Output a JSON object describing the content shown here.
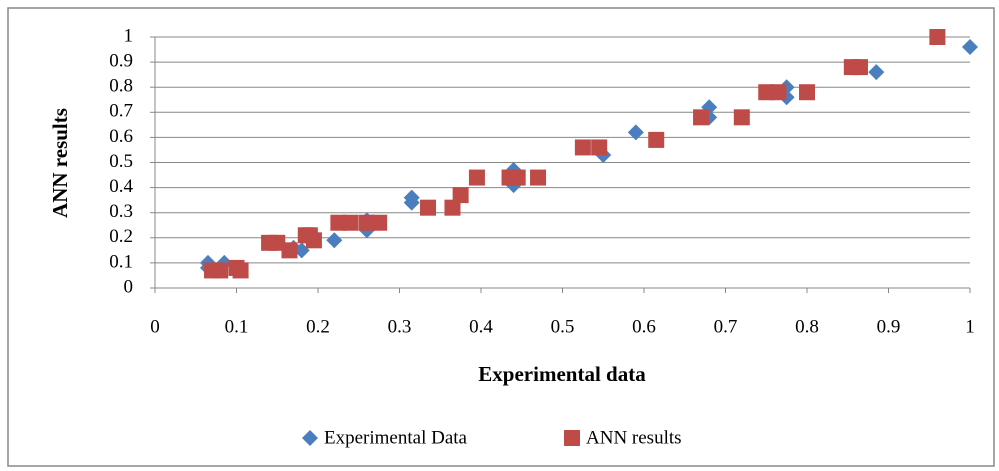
{
  "chart_data": {
    "type": "scatter",
    "x_label": "Experimental data",
    "y_label": "ANN results",
    "xlim": [
      0,
      1
    ],
    "ylim": [
      0,
      1
    ],
    "xticks": [
      0,
      0.1,
      0.2,
      0.3,
      0.4,
      0.5,
      0.6,
      0.7,
      0.8,
      0.9,
      1
    ],
    "yticks": [
      0,
      0.1,
      0.2,
      0.3,
      0.4,
      0.5,
      0.6,
      0.7,
      0.8,
      0.9,
      1
    ],
    "grid": true,
    "legend": "bottom",
    "series": [
      {
        "name": "Experimental Data",
        "color": "#4a7ebf",
        "marker": "diamond",
        "x": [
          0.065,
          0.065,
          0.085,
          0.1,
          0.14,
          0.17,
          0.18,
          0.22,
          0.26,
          0.26,
          0.315,
          0.315,
          0.44,
          0.44,
          0.55,
          0.59,
          0.68,
          0.68,
          0.775,
          0.775,
          0.885,
          1.0
        ],
        "values": [
          0.1,
          0.08,
          0.1,
          0.08,
          0.18,
          0.16,
          0.15,
          0.19,
          0.27,
          0.23,
          0.36,
          0.34,
          0.47,
          0.41,
          0.53,
          0.62,
          0.72,
          0.68,
          0.8,
          0.76,
          0.86,
          0.96
        ]
      },
      {
        "name": "ANN results",
        "color": "#be4b48",
        "marker": "square",
        "x": [
          0.07,
          0.08,
          0.1,
          0.105,
          0.14,
          0.15,
          0.165,
          0.185,
          0.195,
          0.19,
          0.225,
          0.24,
          0.26,
          0.275,
          0.335,
          0.365,
          0.375,
          0.395,
          0.435,
          0.445,
          0.47,
          0.525,
          0.545,
          0.615,
          0.67,
          0.72,
          0.75,
          0.765,
          0.8,
          0.855,
          0.865,
          0.96
        ],
        "values": [
          0.07,
          0.07,
          0.08,
          0.07,
          0.18,
          0.18,
          0.15,
          0.21,
          0.19,
          0.21,
          0.26,
          0.26,
          0.26,
          0.26,
          0.32,
          0.32,
          0.37,
          0.44,
          0.44,
          0.44,
          0.44,
          0.56,
          0.56,
          0.59,
          0.68,
          0.68,
          0.78,
          0.78,
          0.78,
          0.88,
          0.88,
          1.0
        ]
      }
    ]
  }
}
